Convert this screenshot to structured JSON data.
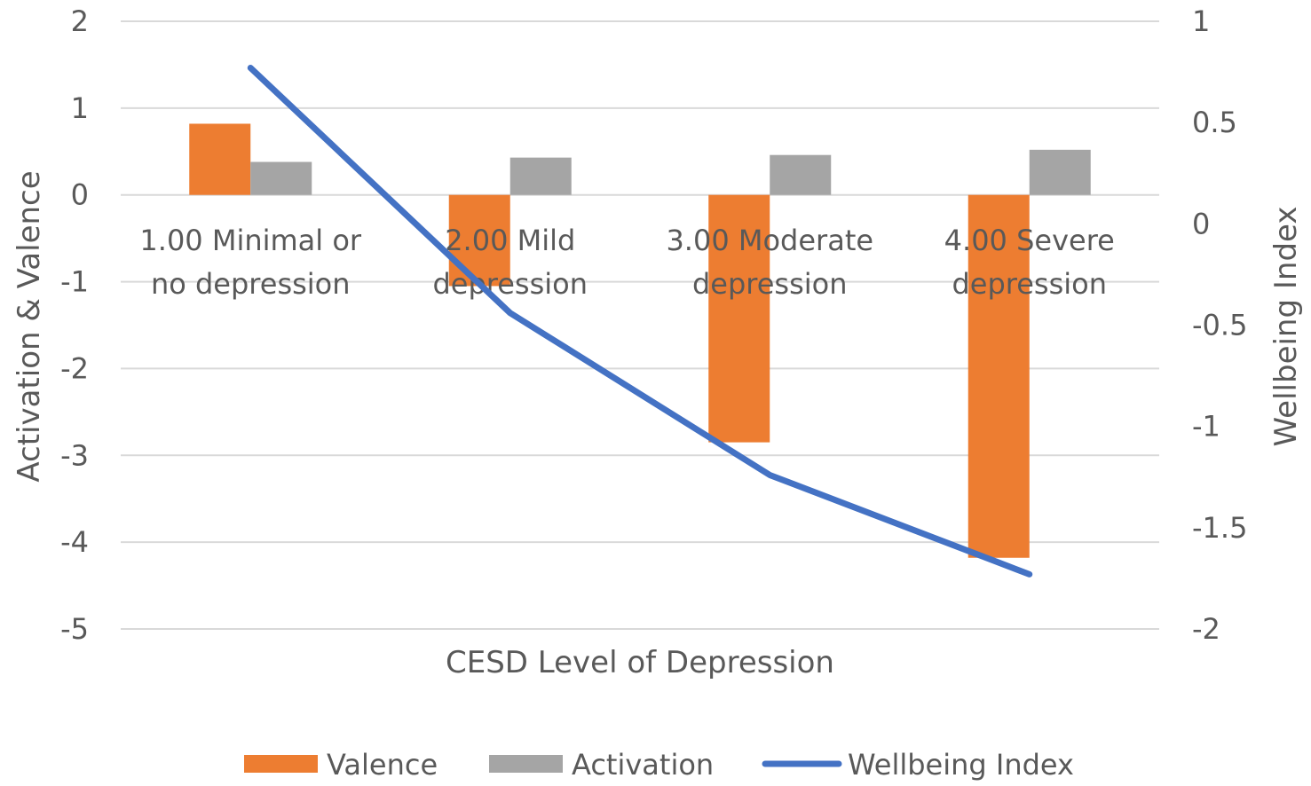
{
  "chart_data": {
    "type": "bar",
    "categories": [
      [
        "1.00 Minimal or",
        "no depression"
      ],
      [
        "2.00 Mild",
        "depression"
      ],
      [
        "3.00 Moderate",
        "depression"
      ],
      [
        "4.00 Severe",
        "depression"
      ]
    ],
    "series": [
      {
        "name": "Valence",
        "type": "bar",
        "axis": "left",
        "color": "#ED7D31",
        "values": [
          0.82,
          -1.05,
          -2.85,
          -4.18
        ]
      },
      {
        "name": "Activation",
        "type": "bar",
        "axis": "left",
        "color": "#A5A5A5",
        "values": [
          0.38,
          0.43,
          0.46,
          0.52
        ]
      },
      {
        "name": "Wellbeing Index",
        "type": "line",
        "axis": "right",
        "color": "#4472C4",
        "values": [
          0.77,
          -0.44,
          -1.24,
          -1.73
        ]
      }
    ],
    "xlabel": "CESD Level of Depression",
    "ylabel": "Activation & Valence",
    "y2label": "Wellbeing Index",
    "ylim": [
      -5,
      2
    ],
    "y2lim": [
      -2,
      1
    ],
    "yticks": [
      "2",
      "1",
      "0",
      "-1",
      "-2",
      "-3",
      "-4",
      "-5"
    ],
    "y2ticks": [
      "1",
      "0.5",
      "0",
      "-0.5",
      "-1",
      "-1.5",
      "-2"
    ],
    "grid": true,
    "legend": "bottom"
  }
}
